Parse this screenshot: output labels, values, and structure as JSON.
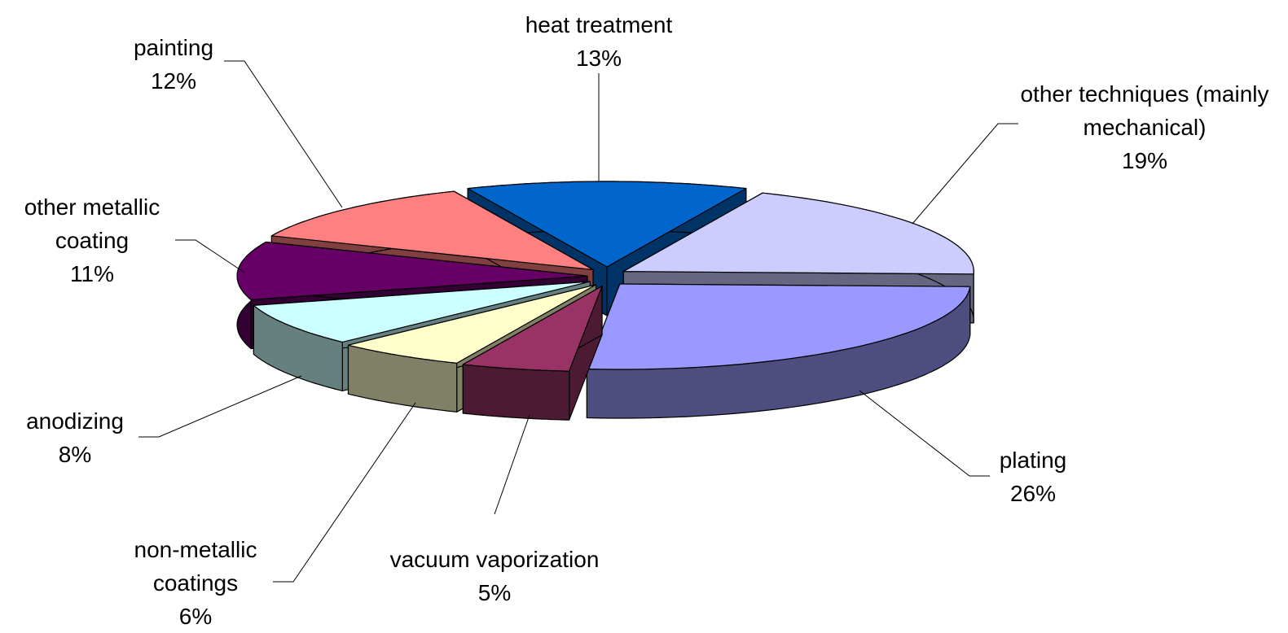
{
  "chart_data": {
    "type": "pie",
    "categories": [
      "heat treatment",
      "other techniques (mainly mechanical)",
      "plating",
      "vacuum vaporization",
      "non-metallic coatings",
      "anodizing",
      "other metallic coating",
      "painting"
    ],
    "values": [
      13,
      19,
      26,
      5,
      6,
      8,
      11,
      12
    ],
    "value_labels": [
      "13%",
      "19%",
      "26%",
      "5%",
      "6%",
      "8%",
      "11%",
      "12%"
    ],
    "colors": [
      "#0066cc",
      "#ccccff",
      "#9999ff",
      "#993366",
      "#ffffcc",
      "#ccffff",
      "#660066",
      "#ff8080"
    ]
  }
}
